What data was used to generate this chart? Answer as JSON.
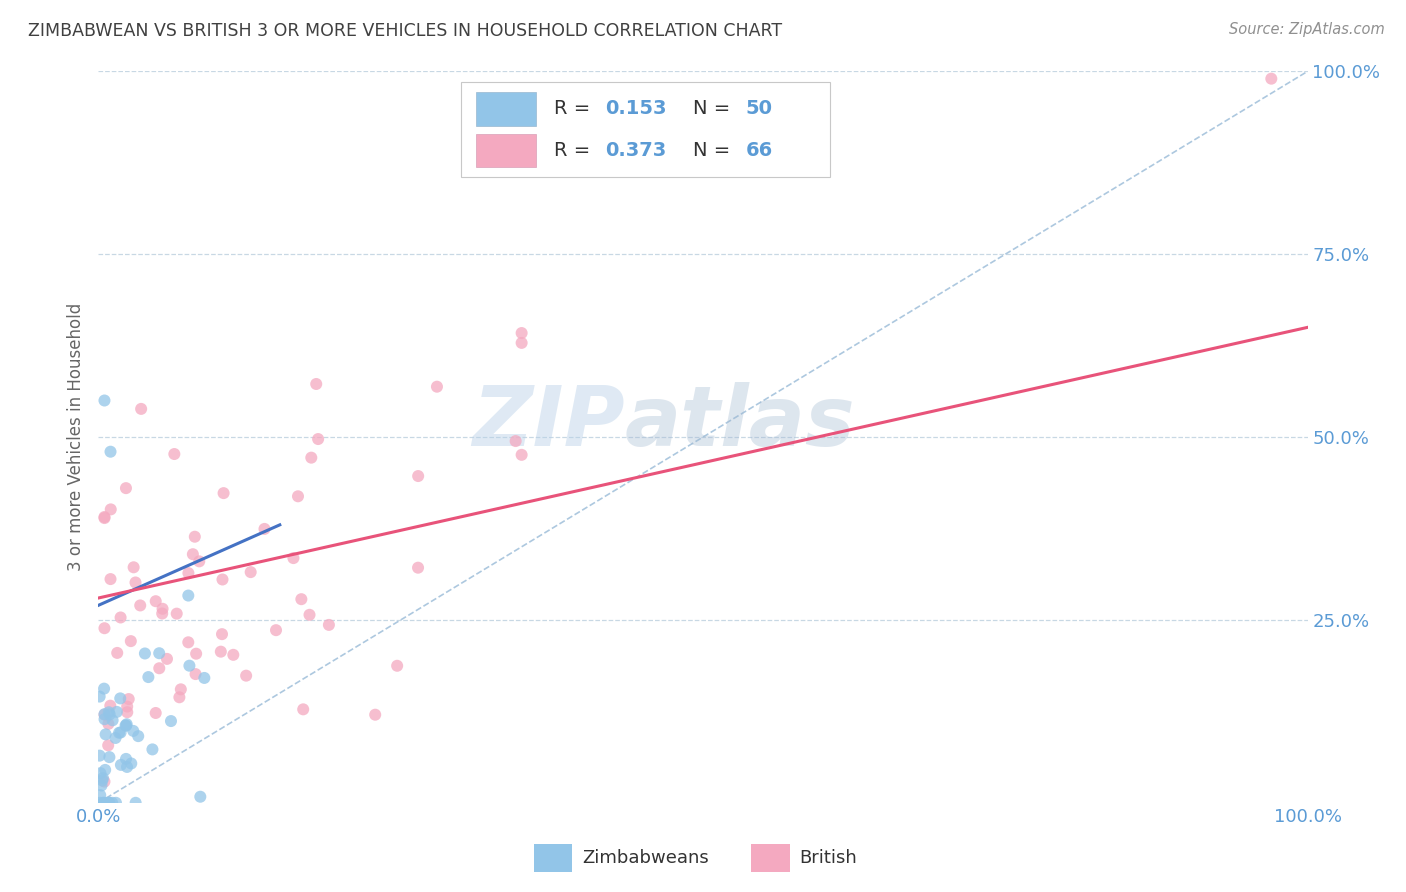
{
  "title": "ZIMBABWEAN VS BRITISH 3 OR MORE VEHICLES IN HOUSEHOLD CORRELATION CHART",
  "source": "Source: ZipAtlas.com",
  "ylabel": "3 or more Vehicles in Household",
  "R1": "0.153",
  "N1": "50",
  "R2": "0.373",
  "N2": "66",
  "watermark_zip": "ZIP",
  "watermark_atlas": "atlas",
  "legend_label1": "Zimbabweans",
  "legend_label2": "British",
  "zim_color": "#92c5e8",
  "brit_color": "#f4a9c0",
  "zim_line_color": "#4472c4",
  "brit_line_color": "#e8537a",
  "diag_color": "#adc8df",
  "background": "#ffffff",
  "grid_color": "#c8d8e4",
  "title_color": "#404040",
  "source_color": "#909090",
  "axis_label_color": "#5b9bd5",
  "ylabel_color": "#666666",
  "marker_size": 75,
  "marker_alpha": 0.75,
  "zim_seed": 42,
  "brit_seed": 99
}
